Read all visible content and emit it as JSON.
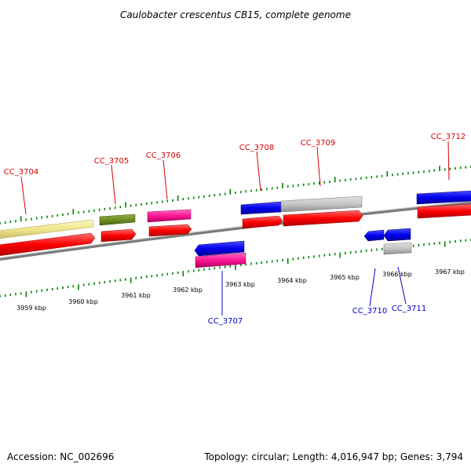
{
  "title": "Caulobacter crescentus CB15, complete genome",
  "footer": {
    "accession": "Accession: NC_002696",
    "summary": "Topology: circular; Length: 4,016,947 bp; Genes: 3,794"
  },
  "colors": {
    "cds": "#ff0000",
    "gene_blue": "#0000ee",
    "gene_gray": "#c0c0c0",
    "gene_yellow": "#f0e68c",
    "gene_olive": "#6b8e23",
    "gene_pink": "#ff1493",
    "tick": "#008000",
    "backbone": "#808080",
    "label_top": "#d40000",
    "label_bottom": "#0000cc"
  },
  "kbp_labels": [
    "3959 kbp",
    "3960 kbp",
    "3961 kbp",
    "3962 kbp",
    "3963 kbp",
    "3964 kbp",
    "3965 kbp",
    "3966 kbp",
    "3967 kbp"
  ],
  "gene_labels_top": [
    "CC_3704",
    "CC_3705",
    "CC_3706",
    "CC_3708",
    "CC_3709",
    "CC_3712"
  ],
  "gene_labels_bottom": [
    "CC_3707",
    "CC_3710",
    "CC_3711"
  ]
}
